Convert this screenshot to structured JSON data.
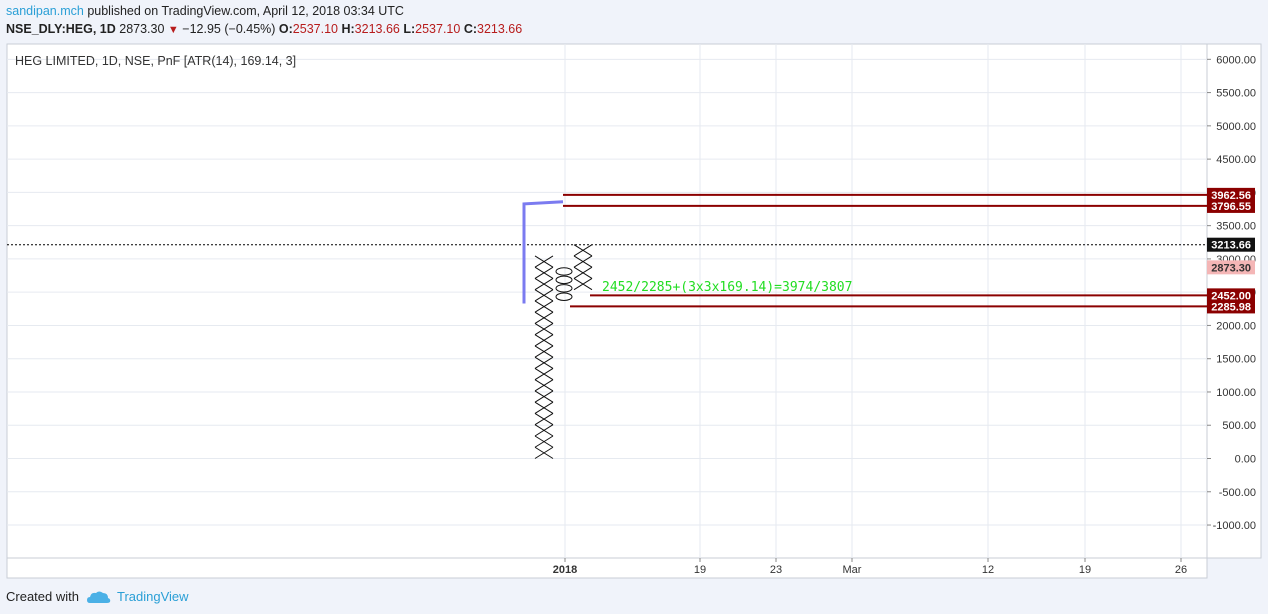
{
  "header": {
    "author": "sandipan.mch",
    "published_text": "published on TradingView.com, April 12, 2018 03:34 UTC",
    "symbol": "NSE_DLY:HEG, 1D",
    "last": "2873.30",
    "change": "−12.95 (−0.45%)",
    "o_label": "O:",
    "o_value": "2537.10",
    "h_label": "H:",
    "h_value": "3213.66",
    "l_label": "L:",
    "l_value": "2537.10",
    "c_label": "C:",
    "c_value": "3213.66"
  },
  "footer": {
    "created_with": "Created with",
    "brand": "TradingView"
  },
  "colors": {
    "panel_bg": "#ffffff",
    "grid": "#e6eaf0",
    "axis_text": "#333333",
    "level_line": "#8b0000",
    "level_tag": "#8b0000",
    "last_tag": "#f4b6b6",
    "current_tag": "#111111",
    "trend_line": "#7b7bf0",
    "annotation": "#22dd22"
  },
  "chart_data": {
    "type": "point-and-figure",
    "title": "HEG LIMITED, 1D, NSE, PnF [ATR(14), 169.14, 3]",
    "ylim": [
      -1500,
      6350
    ],
    "y_ticks": [
      6000,
      5500,
      5000,
      4500,
      4000,
      3500,
      3000,
      2500,
      2000,
      1500,
      1000,
      500,
      0,
      -500,
      -1000
    ],
    "y_tick_labels": [
      "6000.00",
      "5500.00",
      "5000.00",
      "4500.00",
      "4000.00",
      "3500.00",
      "3000.00",
      "2500.00",
      "2000.00",
      "1500.00",
      "1000.00",
      "500.00",
      "0.00",
      "-500.00",
      "-1000.00"
    ],
    "x_tick_labels": [
      "2018",
      "19",
      "23",
      "Mar",
      "12",
      "19",
      "26"
    ],
    "columns": [
      {
        "type": "X",
        "low": 0,
        "high": 3045,
        "boxes": 18
      },
      {
        "type": "O",
        "low": 2368,
        "high": 2875,
        "boxes": 4
      },
      {
        "type": "X",
        "low": 2537,
        "high": 3214,
        "boxes": 4
      }
    ],
    "box_size": 169.14,
    "reversal": 3,
    "levels": [
      {
        "value": 3962.56,
        "label": "3962.56"
      },
      {
        "value": 3796.55,
        "label": "3796.55"
      },
      {
        "value": 2452.0,
        "label": "2452.00"
      },
      {
        "value": 2285.98,
        "label": "2285.98"
      }
    ],
    "current_price": {
      "value": 3213.66,
      "label": "3213.66"
    },
    "last_price": {
      "value": 2873.3,
      "label": "2873.30"
    },
    "trend_line": [
      [
        1,
        2330
      ],
      [
        1,
        3796.55
      ],
      [
        2,
        3830
      ]
    ],
    "annotation": "2452/2285+(3x3x169.14)=3974/3807"
  }
}
